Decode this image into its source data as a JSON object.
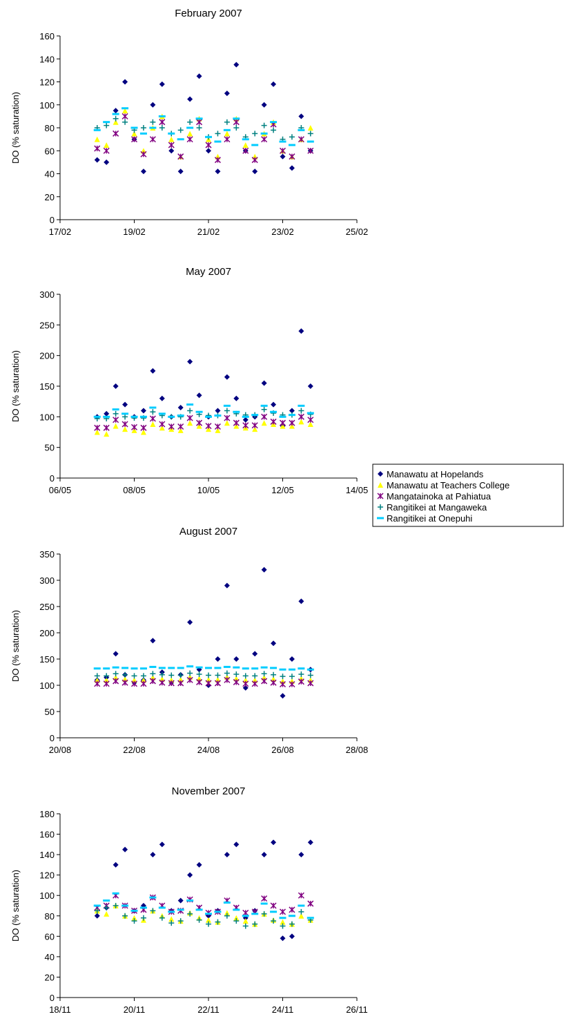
{
  "chart_data": [
    {
      "type": "scatter",
      "title": "February 2007",
      "ylabel": "DO (% saturation)",
      "x": [
        18,
        18.25,
        18.5,
        18.75,
        19,
        19.25,
        19.5,
        19.75,
        20,
        20.25,
        20.5,
        20.75,
        21,
        21.25,
        21.5,
        21.75,
        22,
        22.25,
        22.5,
        22.75,
        23,
        23.25,
        23.5,
        23.75
      ],
      "xlim": [
        17,
        25
      ],
      "xticks": [
        {
          "value": 17,
          "label": "17/02"
        },
        {
          "value": 19,
          "label": "19/02"
        },
        {
          "value": 21,
          "label": "21/02"
        },
        {
          "value": 23,
          "label": "23/02"
        },
        {
          "value": 25,
          "label": "25/02"
        }
      ],
      "ylim": [
        0,
        160
      ],
      "yticks": [
        0,
        20,
        40,
        60,
        80,
        100,
        120,
        140,
        160
      ],
      "series": [
        {
          "color": "#000080",
          "marker": "diamond",
          "values": [
            52,
            50,
            95,
            120,
            70,
            42,
            100,
            118,
            60,
            42,
            105,
            125,
            60,
            42,
            110,
            135,
            60,
            42,
            100,
            118,
            55,
            45,
            90,
            60
          ]
        },
        {
          "color": "#ffff00",
          "marker": "triangle",
          "values": [
            70,
            65,
            85,
            95,
            75,
            60,
            80,
            90,
            70,
            55,
            75,
            88,
            70,
            55,
            75,
            88,
            65,
            55,
            75,
            85,
            60,
            55,
            70,
            80
          ]
        },
        {
          "color": "#800080",
          "marker": "star",
          "values": [
            62,
            60,
            75,
            90,
            70,
            57,
            70,
            85,
            65,
            55,
            70,
            85,
            65,
            52,
            70,
            85,
            60,
            52,
            70,
            83,
            60,
            55,
            70,
            60
          ]
        },
        {
          "color": "#008080",
          "marker": "plus",
          "values": [
            80,
            82,
            88,
            85,
            78,
            80,
            85,
            80,
            75,
            78,
            85,
            80,
            72,
            75,
            85,
            80,
            72,
            75,
            82,
            78,
            70,
            72,
            80,
            75
          ]
        },
        {
          "color": "#00ccff",
          "marker": "dash",
          "values": [
            78,
            85,
            92,
            97,
            80,
            75,
            80,
            90,
            75,
            70,
            80,
            88,
            72,
            68,
            78,
            88,
            70,
            65,
            75,
            85,
            68,
            65,
            78,
            68
          ]
        }
      ]
    },
    {
      "type": "scatter",
      "title": "May 2007",
      "ylabel": "DO (% saturation)",
      "x": [
        7,
        7.25,
        7.5,
        7.75,
        8,
        8.25,
        8.5,
        8.75,
        9,
        9.25,
        9.5,
        9.75,
        10,
        10.25,
        10.5,
        10.75,
        11,
        11.25,
        11.5,
        11.75,
        12,
        12.25,
        12.5,
        12.75
      ],
      "xlim": [
        6,
        14
      ],
      "xticks": [
        {
          "value": 6,
          "label": "06/05"
        },
        {
          "value": 8,
          "label": "08/05"
        },
        {
          "value": 10,
          "label": "10/05"
        },
        {
          "value": 12,
          "label": "12/05"
        },
        {
          "value": 14,
          "label": "14/05"
        }
      ],
      "ylim": [
        0,
        300
      ],
      "yticks": [
        0,
        50,
        100,
        150,
        200,
        250,
        300
      ],
      "series": [
        {
          "color": "#000080",
          "marker": "diamond",
          "values": [
            100,
            105,
            150,
            120,
            100,
            110,
            175,
            130,
            100,
            115,
            190,
            135,
            100,
            110,
            165,
            130,
            95,
            100,
            155,
            120,
            85,
            110,
            240,
            150
          ]
        },
        {
          "color": "#ffff00",
          "marker": "triangle",
          "values": [
            75,
            72,
            85,
            80,
            78,
            75,
            88,
            82,
            80,
            78,
            90,
            85,
            80,
            78,
            90,
            85,
            82,
            80,
            90,
            88,
            85,
            85,
            92,
            88
          ]
        },
        {
          "color": "#800080",
          "marker": "star",
          "values": [
            82,
            82,
            95,
            88,
            83,
            82,
            97,
            88,
            84,
            84,
            98,
            90,
            85,
            84,
            98,
            90,
            86,
            86,
            100,
            92,
            90,
            90,
            100,
            95
          ]
        },
        {
          "color": "#008080",
          "marker": "plus",
          "values": [
            97,
            97,
            105,
            100,
            98,
            98,
            108,
            102,
            100,
            100,
            110,
            104,
            102,
            102,
            110,
            105,
            103,
            103,
            112,
            106,
            103,
            103,
            110,
            104
          ]
        },
        {
          "color": "#00ccff",
          "marker": "dash",
          "values": [
            100,
            100,
            112,
            105,
            100,
            100,
            115,
            105,
            100,
            102,
            120,
            108,
            100,
            102,
            118,
            108,
            100,
            103,
            118,
            108,
            100,
            103,
            118,
            106
          ]
        }
      ]
    },
    {
      "type": "scatter",
      "title": "August 2007",
      "ylabel": "DO (% saturation)",
      "x": [
        21,
        21.25,
        21.5,
        21.75,
        22,
        22.25,
        22.5,
        22.75,
        23,
        23.25,
        23.5,
        23.75,
        24,
        24.25,
        24.5,
        24.75,
        25,
        25.25,
        25.5,
        25.75,
        26,
        26.25,
        26.5,
        26.75
      ],
      "xlim": [
        20,
        28
      ],
      "xticks": [
        {
          "value": 20,
          "label": "20/08"
        },
        {
          "value": 22,
          "label": "22/08"
        },
        {
          "value": 24,
          "label": "24/08"
        },
        {
          "value": 26,
          "label": "26/08"
        },
        {
          "value": 28,
          "label": "28/08"
        }
      ],
      "ylim": [
        0,
        350
      ],
      "yticks": [
        0,
        50,
        100,
        150,
        200,
        250,
        300,
        350
      ],
      "series": [
        {
          "color": "#000080",
          "marker": "diamond",
          "values": [
            110,
            115,
            160,
            120,
            105,
            110,
            185,
            125,
            105,
            120,
            220,
            130,
            100,
            150,
            290,
            150,
            95,
            160,
            320,
            180,
            80,
            150,
            260,
            130
          ]
        },
        {
          "color": "#ffff00",
          "marker": "triangle",
          "values": [
            110,
            110,
            115,
            112,
            110,
            110,
            115,
            112,
            110,
            111,
            116,
            113,
            111,
            111,
            116,
            113,
            110,
            110,
            115,
            112,
            108,
            108,
            113,
            110
          ]
        },
        {
          "color": "#800080",
          "marker": "star",
          "values": [
            103,
            103,
            108,
            105,
            103,
            103,
            108,
            105,
            104,
            104,
            110,
            106,
            104,
            104,
            110,
            106,
            103,
            103,
            108,
            105,
            102,
            102,
            107,
            104
          ]
        },
        {
          "color": "#008080",
          "marker": "plus",
          "values": [
            118,
            118,
            122,
            120,
            118,
            118,
            122,
            120,
            119,
            119,
            123,
            121,
            119,
            119,
            123,
            121,
            118,
            118,
            122,
            120,
            117,
            117,
            121,
            119
          ]
        },
        {
          "color": "#00ccff",
          "marker": "dash",
          "values": [
            132,
            132,
            134,
            133,
            132,
            132,
            135,
            133,
            133,
            133,
            136,
            134,
            133,
            133,
            135,
            134,
            132,
            132,
            134,
            133,
            130,
            130,
            132,
            130
          ]
        }
      ]
    },
    {
      "type": "scatter",
      "title": "November 2007",
      "ylabel": "DO (% saturation)",
      "x": [
        19,
        19.25,
        19.5,
        19.75,
        20,
        20.25,
        20.5,
        20.75,
        21,
        21.25,
        21.5,
        21.75,
        22,
        22.25,
        22.5,
        22.75,
        23,
        23.25,
        23.5,
        23.75,
        24,
        24.25,
        24.5,
        24.75
      ],
      "xlim": [
        18,
        26
      ],
      "xticks": [
        {
          "value": 18,
          "label": "18/11"
        },
        {
          "value": 20,
          "label": "20/11"
        },
        {
          "value": 22,
          "label": "22/11"
        },
        {
          "value": 24,
          "label": "24/11"
        },
        {
          "value": 26,
          "label": "26/11"
        }
      ],
      "ylim": [
        0,
        180
      ],
      "yticks": [
        0,
        20,
        40,
        60,
        80,
        100,
        120,
        140,
        160,
        180
      ],
      "legend": "right",
      "series": [
        {
          "name": "Manawatu at Hopelands",
          "color": "#000080",
          "marker": "diamond",
          "values": [
            80,
            88,
            130,
            145,
            85,
            90,
            140,
            150,
            85,
            95,
            120,
            130,
            80,
            85,
            140,
            150,
            78,
            85,
            140,
            152,
            58,
            60,
            140,
            152
          ]
        },
        {
          "name": "Manawatu at Teachers College",
          "color": "#ffff00",
          "marker": "triangle",
          "values": [
            85,
            82,
            90,
            80,
            78,
            76,
            85,
            80,
            77,
            75,
            83,
            78,
            76,
            74,
            83,
            78,
            75,
            72,
            82,
            76,
            74,
            72,
            80,
            76
          ]
        },
        {
          "name": "Mangatainoka at Pahiatua",
          "color": "#800080",
          "marker": "star",
          "values": [
            88,
            90,
            100,
            90,
            85,
            86,
            98,
            90,
            84,
            85,
            96,
            88,
            83,
            84,
            95,
            88,
            83,
            84,
            97,
            90,
            84,
            86,
            100,
            92
          ]
        },
        {
          "name": "Rangitikei at Mangaweka",
          "color": "#008080",
          "marker": "plus",
          "values": [
            85,
            88,
            90,
            80,
            75,
            78,
            85,
            78,
            73,
            75,
            82,
            76,
            72,
            74,
            80,
            75,
            70,
            72,
            82,
            75,
            70,
            72,
            84,
            76
          ]
        },
        {
          "name": "Rangitikei at Onepuhi",
          "color": "#00ccff",
          "marker": "dash",
          "values": [
            90,
            95,
            102,
            90,
            85,
            88,
            98,
            88,
            84,
            86,
            95,
            86,
            82,
            84,
            93,
            86,
            80,
            82,
            92,
            84,
            78,
            80,
            90,
            78
          ]
        }
      ]
    }
  ]
}
